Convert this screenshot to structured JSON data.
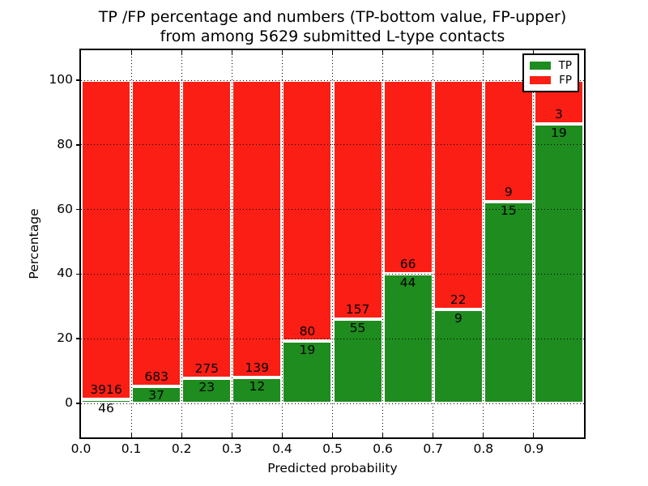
{
  "chart_data": {
    "type": "bar",
    "variant": "stacked-percentage-histogram",
    "title_line1": "TP /FP percentage and numbers (TP-bottom value, FP-upper)",
    "title_line2": "from among 5629 submitted L-type contacts",
    "xlabel": "Predicted probability",
    "ylabel": "Percentage",
    "x_tick_labels": [
      "0.0",
      "0.1",
      "0.2",
      "0.3",
      "0.4",
      "0.5",
      "0.6",
      "0.7",
      "0.8",
      "0.9"
    ],
    "y_tick_values": [
      0,
      20,
      40,
      60,
      80,
      100
    ],
    "xlim": [
      0.0,
      1.0
    ],
    "ylim": [
      -10.5,
      109.3
    ],
    "bin_edges": [
      0.0,
      0.1,
      0.2,
      0.3,
      0.4,
      0.5,
      0.6,
      0.7,
      0.8,
      0.9,
      1.0
    ],
    "grid": "dotted",
    "legend_position": "upper-right",
    "bar_edge_color": "#ffffff",
    "total_contacts": 5629,
    "series": [
      {
        "name": "TP",
        "color": "#1e8c1e",
        "counts": [
          46,
          37,
          23,
          12,
          19,
          55,
          44,
          9,
          15,
          19
        ]
      },
      {
        "name": "FP",
        "color": "#fb1e14",
        "counts": [
          3916,
          683,
          275,
          139,
          80,
          157,
          66,
          22,
          9,
          3
        ]
      }
    ]
  }
}
